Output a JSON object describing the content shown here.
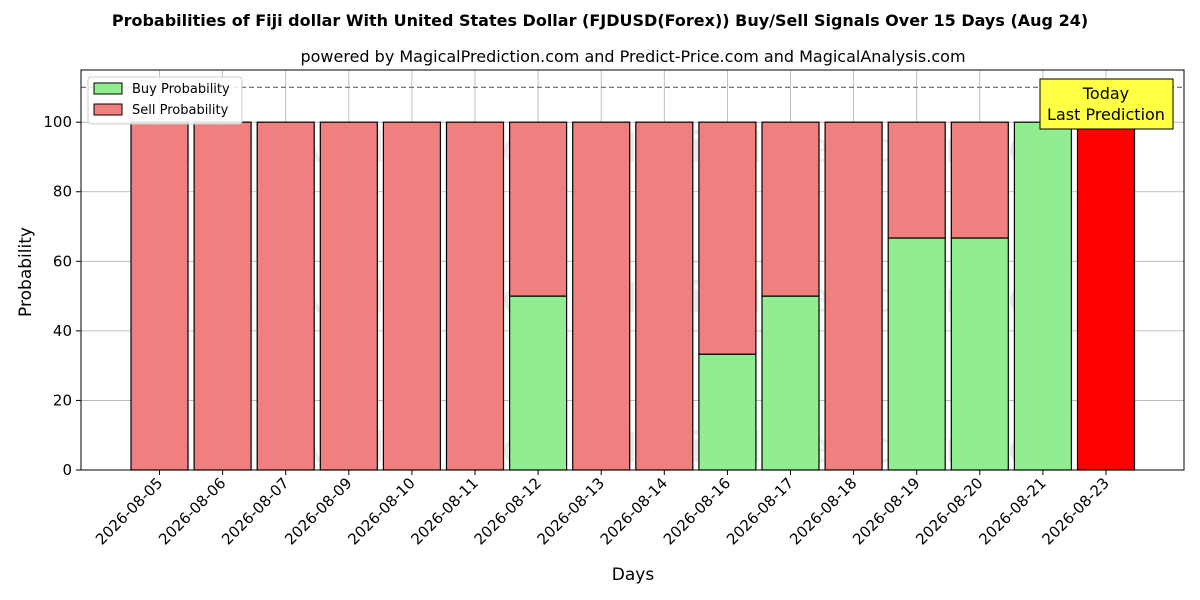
{
  "chart_data": {
    "type": "bar",
    "stacked": true,
    "title": "Probabilities of Fiji dollar With United States Dollar (FJDUSD(Forex)) Buy/Sell Signals Over 15 Days (Aug 24)",
    "subtitle": "powered by MagicalPrediction.com and Predict-Price.com and MagicalAnalysis.com",
    "xlabel": "Days",
    "ylabel": "Probability",
    "ylim": [
      0,
      115
    ],
    "yticks": [
      0,
      20,
      40,
      60,
      80,
      100
    ],
    "reference_line": 110,
    "grid": true,
    "legend_position": "top-left",
    "categories": [
      "2026-08-05",
      "2026-08-06",
      "2026-08-07",
      "2026-08-09",
      "2026-08-10",
      "2026-08-11",
      "2026-08-12",
      "2026-08-13",
      "2026-08-14",
      "2026-08-16",
      "2026-08-17",
      "2026-08-18",
      "2026-08-19",
      "2026-08-20",
      "2026-08-21",
      "2026-08-23"
    ],
    "series": [
      {
        "name": "Buy Probability",
        "color": "#90ee90",
        "values": [
          0,
          0,
          0,
          0,
          0,
          0,
          50,
          0,
          0,
          33.3,
          50,
          0,
          66.7,
          66.7,
          100,
          0
        ]
      },
      {
        "name": "Sell Probability",
        "color": "#f08080",
        "values": [
          100,
          100,
          100,
          100,
          100,
          100,
          50,
          100,
          100,
          66.7,
          50,
          100,
          33.3,
          33.3,
          0,
          100
        ]
      }
    ],
    "highlight": {
      "index": 15,
      "color": "#ff0000"
    },
    "annotation": {
      "lines": [
        "Today",
        "Last Prediction"
      ],
      "background": "#ffff44"
    },
    "watermark": [
      "MagicalAnalysis.com",
      "MagicalPrediction.com"
    ]
  }
}
